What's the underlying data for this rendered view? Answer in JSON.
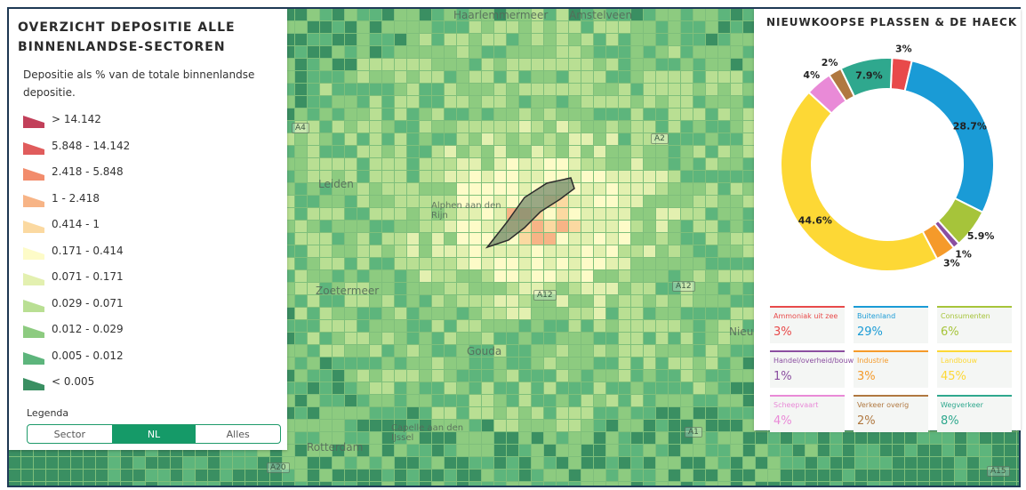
{
  "legend": {
    "title": "OVERZICHT DEPOSITIE ALLE BINNENLANDSE-SECTOREN",
    "subtitle": "Depositie als % van de totale binnenlandse depositie.",
    "items": [
      {
        "label": "> 14.142",
        "color": "#c2405a"
      },
      {
        "label": "5.848 - 14.142",
        "color": "#e05c5c"
      },
      {
        "label": "2.418 - 5.848",
        "color": "#f28c6c"
      },
      {
        "label": "1 - 2.418",
        "color": "#f7b486"
      },
      {
        "label": "0.414 - 1",
        "color": "#fbd9a1"
      },
      {
        "label": "0.171 - 0.414",
        "color": "#fdfbc8"
      },
      {
        "label": "0.071 - 0.171",
        "color": "#e3f0b0"
      },
      {
        "label": "0.029 - 0.071",
        "color": "#b9df93"
      },
      {
        "label": "0.012 - 0.029",
        "color": "#8dcb80"
      },
      {
        "label": "0.005 - 0.012",
        "color": "#5db57c"
      },
      {
        "label": "< 0.005",
        "color": "#3a8f62"
      }
    ],
    "legenda_label": "Legenda",
    "toggle": {
      "options": [
        "Sector",
        "NL",
        "Alles"
      ],
      "selected": "NL"
    }
  },
  "map": {
    "place_labels": [
      "Haarlemmermeer",
      "Amstelveen",
      "Leiden",
      "Alphen aan den Rijn",
      "Zoetermeer",
      "Gouda",
      "Rotterdam",
      "Capelle aan den IJssel",
      "Nieuw"
    ],
    "road_labels": [
      "A12",
      "A12",
      "A20",
      "A4",
      "A1",
      "A2",
      "A15"
    ]
  },
  "chart": {
    "title": "NIEUWKOOPSE PLASSEN & DE HAECK",
    "chart_data": {
      "type": "pie",
      "series": [
        {
          "name": "Ammoniak uit zee",
          "value": 3,
          "label": "3%",
          "color": "#e84a4a"
        },
        {
          "name": "Buitenland",
          "value": 28.7,
          "label": "28.7%",
          "color": "#1a9bd6"
        },
        {
          "name": "Consumenten",
          "value": 5.9,
          "label": "5.9%",
          "color": "#a6c43a"
        },
        {
          "name": "Handel/overheid/bouw",
          "value": 1,
          "label": "1%",
          "color": "#8b4fa0"
        },
        {
          "name": "Industrie",
          "value": 3,
          "label": "3%",
          "color": "#f59a2a"
        },
        {
          "name": "Landbouw",
          "value": 44.6,
          "label": "44.6%",
          "color": "#fdd835"
        },
        {
          "name": "Scheepvaart",
          "value": 4,
          "label": "4%",
          "color": "#e98ad7"
        },
        {
          "name": "Verkeer overig",
          "value": 2,
          "label": "2%",
          "color": "#b07840"
        },
        {
          "name": "Wegverkeer",
          "value": 7.9,
          "label": "7.9%",
          "color": "#2fa88e"
        }
      ]
    },
    "cards": [
      {
        "name": "Ammoniak uit zee",
        "value": "3%",
        "color": "#e84a4a"
      },
      {
        "name": "Buitenland",
        "value": "29%",
        "color": "#1a9bd6"
      },
      {
        "name": "Consumenten",
        "value": "6%",
        "color": "#a6c43a"
      },
      {
        "name": "Handel/overheid/bouw",
        "value": "1%",
        "color": "#8b4fa0"
      },
      {
        "name": "Industrie",
        "value": "3%",
        "color": "#f59a2a"
      },
      {
        "name": "Landbouw",
        "value": "45%",
        "color": "#fdd835"
      },
      {
        "name": "Scheepvaart",
        "value": "4%",
        "color": "#e98ad7"
      },
      {
        "name": "Verkeer overig",
        "value": "2%",
        "color": "#b07840"
      },
      {
        "name": "Wegverkeer",
        "value": "8%",
        "color": "#2fa88e"
      }
    ]
  }
}
